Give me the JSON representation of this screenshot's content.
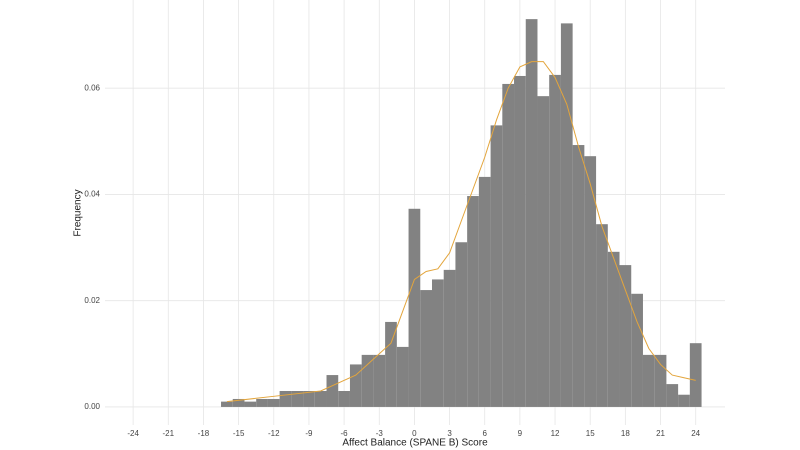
{
  "chart_data": {
    "type": "histogram",
    "x_label": "Affect Balance (SPANE B) Score",
    "y_label": "Frequency",
    "bins": [
      -16.5,
      -15.5,
      -14.5,
      -13.5,
      -12.5,
      -11.5,
      -10.5,
      -9.5,
      -8.5,
      -7.5,
      -6.5,
      -5.5,
      -4.5,
      -3.5,
      -2.5,
      -1.5,
      -0.5,
      0.5,
      1.5,
      2.5,
      3.5,
      4.5,
      5.5,
      6.5,
      7.5,
      8.5,
      9.5,
      10.5,
      11.5,
      12.5,
      13.5,
      14.5,
      15.5,
      16.5,
      17.5,
      18.5,
      19.5,
      20.5,
      21.5,
      22.5,
      23.5,
      24.5
    ],
    "values": [
      0.001,
      0.0015,
      0.001,
      0.0015,
      0.0015,
      0.003,
      0.003,
      0.003,
      0.003,
      0.006,
      0.003,
      0.008,
      0.0098,
      0.0098,
      0.016,
      0.0113,
      0.0373,
      0.022,
      0.024,
      0.0258,
      0.031,
      0.0397,
      0.0433,
      0.053,
      0.0608,
      0.0623,
      0.073,
      0.0585,
      0.0625,
      0.0722,
      0.0493,
      0.0472,
      0.0344,
      0.0292,
      0.0267,
      0.0213,
      0.0098,
      0.0098,
      0.0043,
      0.0023,
      0.012
    ],
    "color": "#828282",
    "density": {
      "color": "#e3a53c",
      "x": [
        -16,
        -12,
        -8,
        -5,
        -2,
        0,
        1,
        2,
        3,
        4,
        5,
        6,
        7,
        8,
        9,
        10,
        11,
        12,
        13,
        14,
        15,
        16,
        17,
        18,
        19,
        20,
        21,
        22,
        23,
        24
      ],
      "y": [
        0.001,
        0.002,
        0.003,
        0.006,
        0.012,
        0.024,
        0.0255,
        0.026,
        0.029,
        0.035,
        0.041,
        0.047,
        0.054,
        0.06,
        0.064,
        0.065,
        0.065,
        0.062,
        0.057,
        0.049,
        0.042,
        0.034,
        0.028,
        0.022,
        0.016,
        0.011,
        0.008,
        0.006,
        0.0055,
        0.005
      ]
    },
    "xlim": [
      -26.4,
      26.5
    ],
    "ylim": [
      -0.0034,
      0.0766
    ],
    "xticks": [
      -24,
      -21,
      -18,
      -15,
      -12,
      -9,
      -6,
      -3,
      0,
      3,
      6,
      9,
      12,
      15,
      18,
      21,
      24
    ],
    "yticks": [
      {
        "value": 0,
        "label": "0.00"
      },
      {
        "value": 0.02,
        "label": "0.02"
      },
      {
        "value": 0.04,
        "label": "0.04"
      },
      {
        "value": 0.06,
        "label": "0.06"
      }
    ],
    "grid": true
  }
}
